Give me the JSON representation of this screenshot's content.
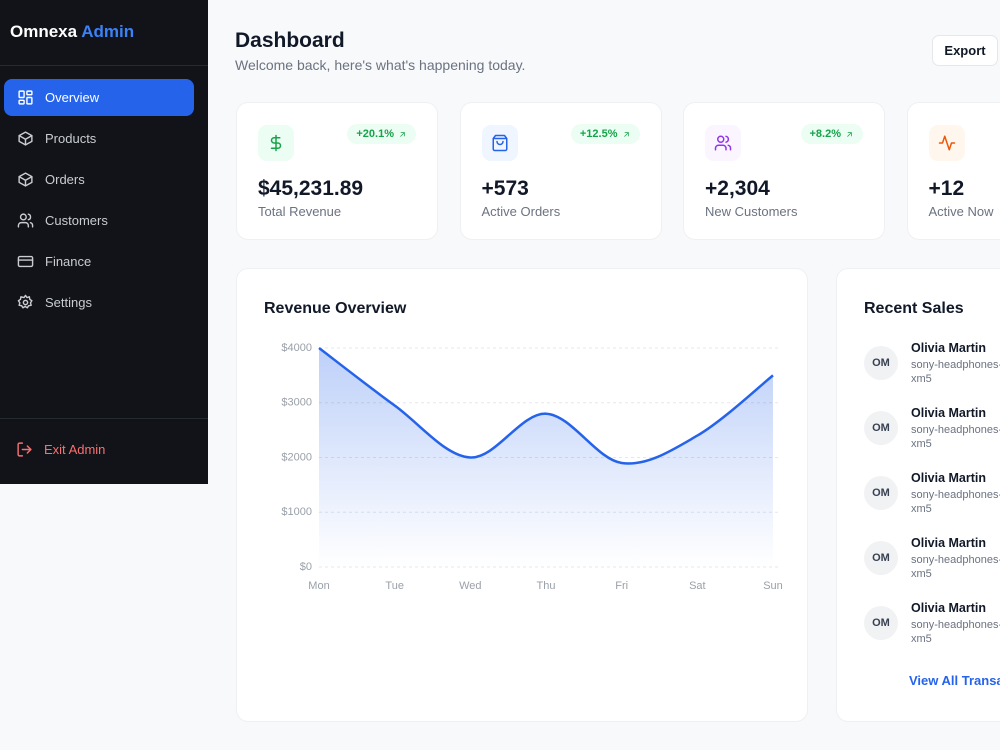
{
  "sidebar": {
    "brand": {
      "name": "Omnexa",
      "suffix": "Admin"
    },
    "nav": [
      {
        "label": "Overview",
        "active": true
      },
      {
        "label": "Products",
        "active": false
      },
      {
        "label": "Orders",
        "active": false
      },
      {
        "label": "Customers",
        "active": false
      },
      {
        "label": "Finance",
        "active": false
      },
      {
        "label": "Settings",
        "active": false
      }
    ],
    "exit": "Exit Admin"
  },
  "header": {
    "title": "Dashboard",
    "subtitle": "Welcome back, here's what's happening today.",
    "export": "Export"
  },
  "stats": [
    {
      "value": "$45,231.89",
      "label": "Total Revenue",
      "change": "+20.1%"
    },
    {
      "value": "+573",
      "label": "Active Orders",
      "change": "+12.5%"
    },
    {
      "value": "+2,304",
      "label": "New Customers",
      "change": "+8.2%"
    },
    {
      "value": "+12",
      "label": "Active Now"
    }
  ],
  "revenue_chart": {
    "type": "line",
    "title": "Revenue Overview",
    "categories": [
      "Mon",
      "Tue",
      "Wed",
      "Thu",
      "Fri",
      "Sat",
      "Sun"
    ],
    "values": [
      4000,
      2950,
      2000,
      2800,
      1900,
      2400,
      3500
    ],
    "color": "#2563eb",
    "ylim": [
      0,
      4000
    ],
    "yticks": [
      {
        "value": 0,
        "label": "$0"
      },
      {
        "value": 1000,
        "label": "$1000"
      },
      {
        "value": 2000,
        "label": "$2000"
      },
      {
        "value": 3000,
        "label": "$3000"
      },
      {
        "value": 4000,
        "label": "$4000"
      }
    ],
    "grid": true
  },
  "recent_sales": {
    "title": "Recent Sales",
    "items": [
      {
        "initials": "OM",
        "name": "Olivia Martin",
        "product": "sony-headphones-xm5"
      },
      {
        "initials": "OM",
        "name": "Olivia Martin",
        "product": "sony-headphones-xm5"
      },
      {
        "initials": "OM",
        "name": "Olivia Martin",
        "product": "sony-headphones-xm5"
      },
      {
        "initials": "OM",
        "name": "Olivia Martin",
        "product": "sony-headphones-xm5"
      },
      {
        "initials": "OM",
        "name": "Olivia Martin",
        "product": "sony-headphones-xm5"
      }
    ],
    "link": "View All Transactions"
  }
}
